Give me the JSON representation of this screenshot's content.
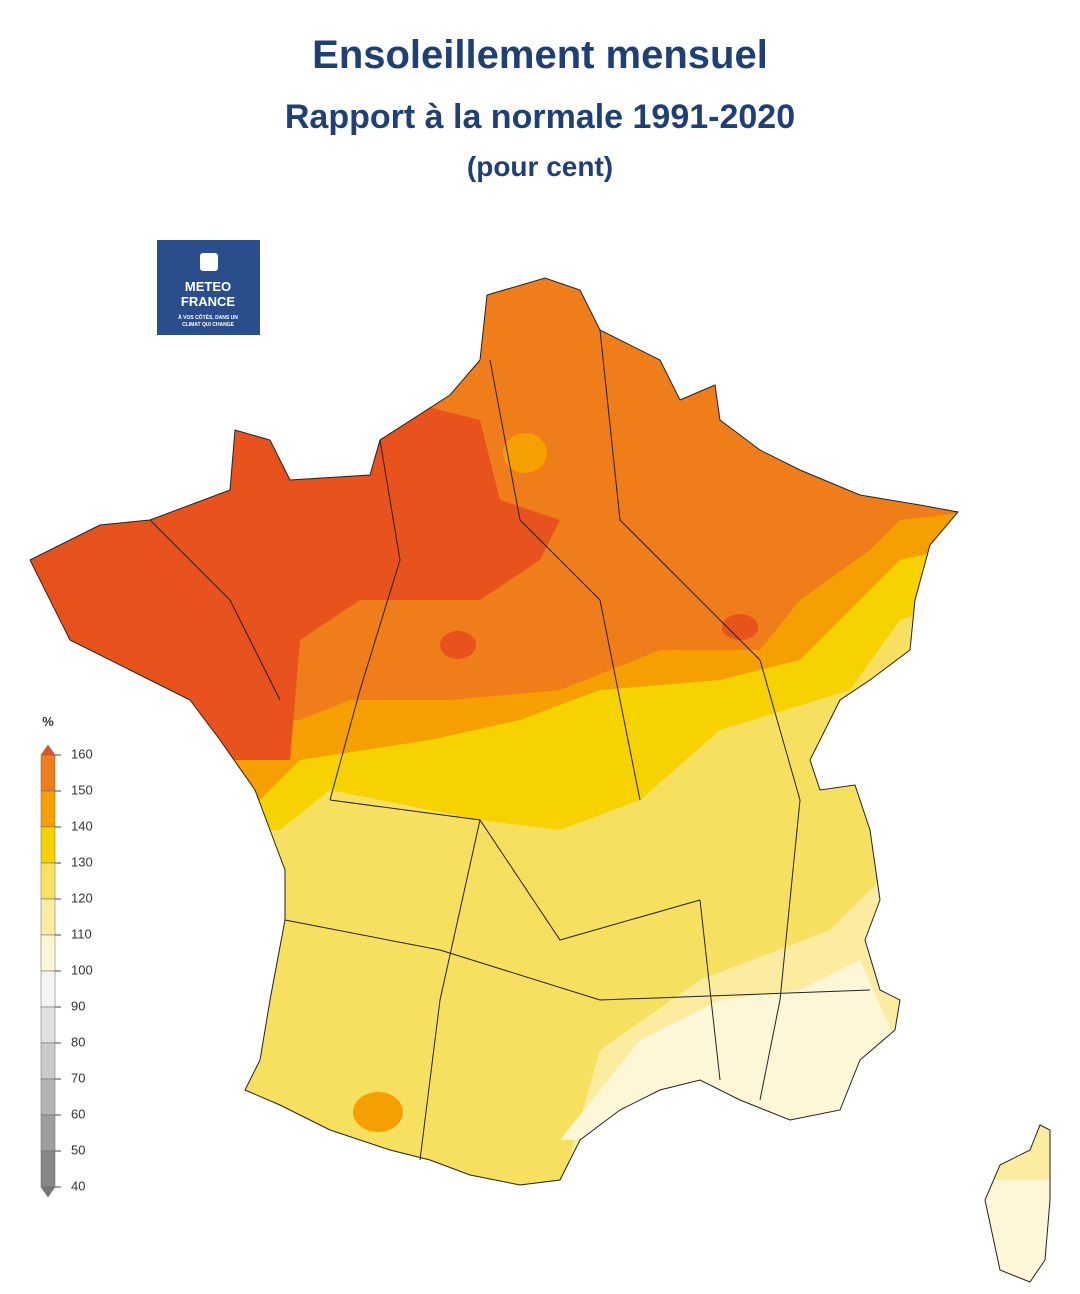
{
  "header": {
    "title": "Ensoleillement mensuel",
    "subtitle": "Rapport à la normale 1991-2020",
    "note": "(pour cent)"
  },
  "logo": {
    "line1": "METEO",
    "line2": "FRANCE",
    "tagline1": "À VOS CÔTÉS, DANS UN",
    "tagline2": "CLIMAT QUI CHANGE"
  },
  "legend": {
    "unit": "%",
    "ticks": [
      160,
      150,
      140,
      130,
      120,
      110,
      100,
      90,
      80,
      70,
      60,
      50,
      40
    ],
    "colors": [
      "#ef7d1a",
      "#f5a000",
      "#f5d200",
      "#f7e060",
      "#fbeca0",
      "#fdf7d8",
      "#f4f4f4",
      "#e0e0e0",
      "#cacaca",
      "#b4b4b4",
      "#9e9e9e",
      "#888888"
    ],
    "above_color": "#e8521c",
    "below_color": "#777777"
  }
}
